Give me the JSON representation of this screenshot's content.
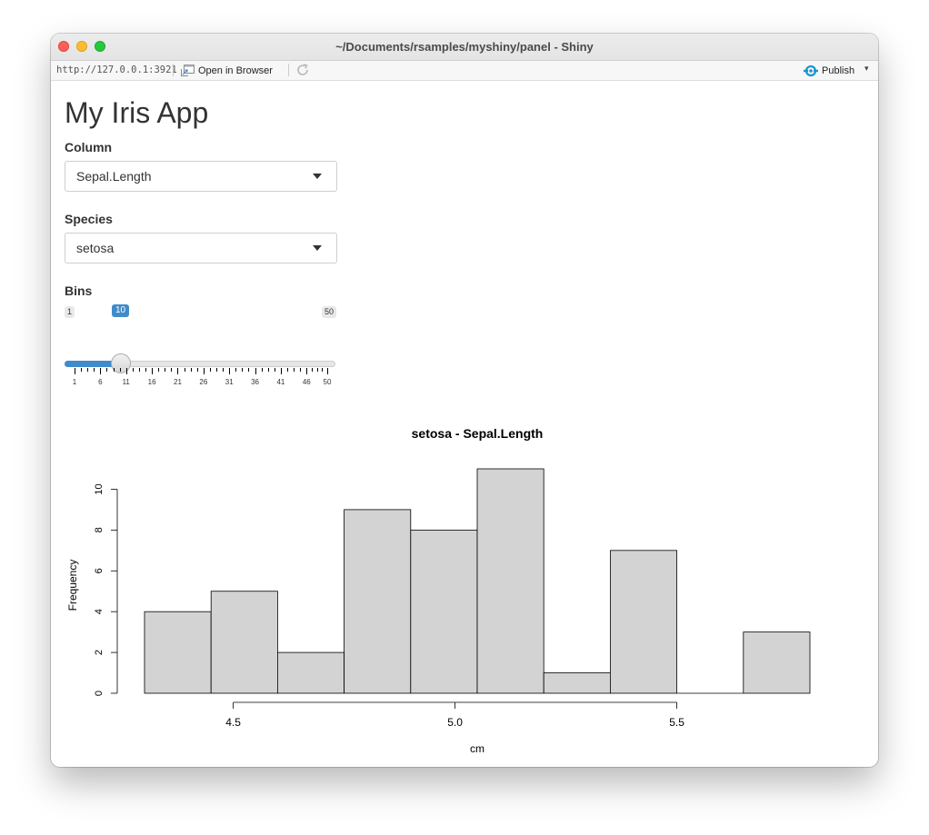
{
  "window": {
    "title": "~/Documents/rsamples/myshiny/panel - Shiny"
  },
  "toolbar": {
    "url": "http://127.0.0.1:3921",
    "open_in_browser": "Open in Browser",
    "publish": "Publish",
    "icons": [
      "open-browser-icon",
      "refresh-icon",
      "publish-icon",
      "chevron-down-icon"
    ]
  },
  "app": {
    "title": "My Iris App",
    "column_label": "Column",
    "column_value": "Sepal.Length",
    "species_label": "Species",
    "species_value": "setosa",
    "bins_label": "Bins",
    "bins": {
      "min": 1,
      "max": 50,
      "value": 10,
      "min_label": "1",
      "max_label": "50",
      "value_label": "10",
      "tick_labels": [
        "1",
        "6",
        "11",
        "16",
        "21",
        "26",
        "31",
        "36",
        "41",
        "46",
        "50"
      ]
    }
  },
  "colors": {
    "accent": "#428bca",
    "bar_fill": "#d3d3d3",
    "bar_stroke": "#000000"
  },
  "chart_data": {
    "type": "bar",
    "title": "setosa - Sepal.Length",
    "xlabel": "cm",
    "ylabel": "Frequency",
    "bin_edges": [
      4.3,
      4.45,
      4.6,
      4.75,
      4.9,
      5.05,
      5.2,
      5.35,
      5.5,
      5.65,
      5.8
    ],
    "values": [
      4,
      5,
      2,
      9,
      8,
      11,
      1,
      7,
      0,
      3
    ],
    "x_ticks": [
      "4.5",
      "5.0",
      "5.5"
    ],
    "x_tick_values": [
      4.5,
      5.0,
      5.5
    ],
    "y_ticks": [
      "0",
      "2",
      "4",
      "6",
      "8",
      "10"
    ],
    "y_tick_values": [
      0,
      2,
      4,
      6,
      8,
      10
    ],
    "xlim": [
      4.3,
      5.8
    ],
    "ylim": [
      0,
      11
    ],
    "grid": false,
    "legend": false
  }
}
